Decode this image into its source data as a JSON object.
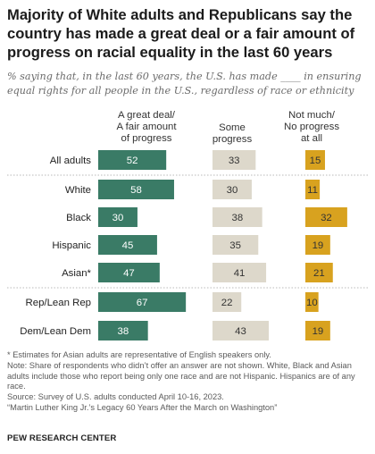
{
  "title": "Majority of White adults and Republicans say the country has made a great deal or a fair amount of progress on racial equality in the last 60 years",
  "subtitle": "% saying that, in the last 60 years, the U.S. has made ____ in ensuring equal rights for all people in the U.S., regardless of race or ethnicity",
  "colors": {
    "great_deal": "#3a7b66",
    "some": "#ddd8cb",
    "not_much": "#d8a21f"
  },
  "chart_data": {
    "type": "bar",
    "categories": [
      "All adults",
      "White",
      "Black",
      "Hispanic",
      "Asian*",
      "Rep/Lean Rep",
      "Dem/Lean Dem"
    ],
    "series": [
      {
        "name": "A great deal/\nA fair amount\nof progress",
        "values": [
          52,
          58,
          30,
          45,
          47,
          67,
          38
        ]
      },
      {
        "name": "Some\nprogress",
        "values": [
          33,
          30,
          38,
          35,
          41,
          22,
          43
        ]
      },
      {
        "name": "Not much/\nNo progress\nat all",
        "values": [
          15,
          11,
          32,
          19,
          21,
          10,
          19
        ]
      }
    ]
  },
  "notes": [
    "* Estimates for Asian adults are representative of English speakers only.",
    "Note: Share of respondents who didn’t offer an answer are not shown. White, Black and Asian adults include those who report being only one race and are not Hispanic. Hispanics are of any race.",
    "Source: Survey of U.S. adults conducted April 10-16, 2023.",
    "“Martin Luther King Jr.’s Legacy 60 Years After the March on Washington”"
  ],
  "brand": "PEW RESEARCH CENTER"
}
